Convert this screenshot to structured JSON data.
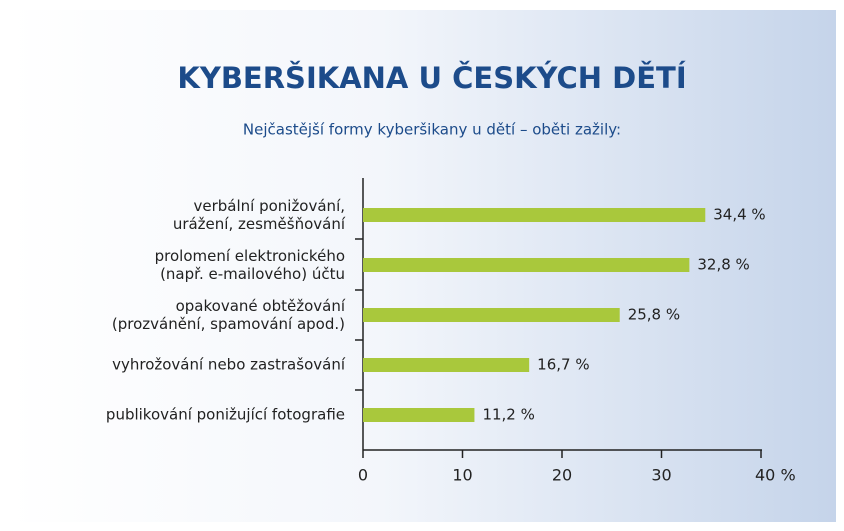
{
  "chart_data": {
    "type": "barh",
    "title": "KYBERŠIKANA U ČESKÝCH DĚTÍ",
    "subtitle": "Nejčastější formy kyberšikany u dětí – oběti zažily:",
    "categories": [
      "verbální ponižování,\nurážení, zesměšňování",
      "prolomení elektronického\n(např. e-mailového) účtu",
      "opakované obtěžování\n(prozvánění, spamování apod.)",
      "vyhrožování nebo zastrašování",
      "publikování ponižující fotografie"
    ],
    "values": [
      34.4,
      32.8,
      25.8,
      16.7,
      11.2
    ],
    "value_labels": [
      "34,4 %",
      "32,8 %",
      "25,8 %",
      "16,7 %",
      "11,2 %"
    ],
    "color": "#a9c83c",
    "xlim": [
      0,
      40
    ],
    "xticks": [
      0,
      10,
      20,
      30,
      {
        "value": 40,
        "label": "40 %"
      }
    ]
  }
}
